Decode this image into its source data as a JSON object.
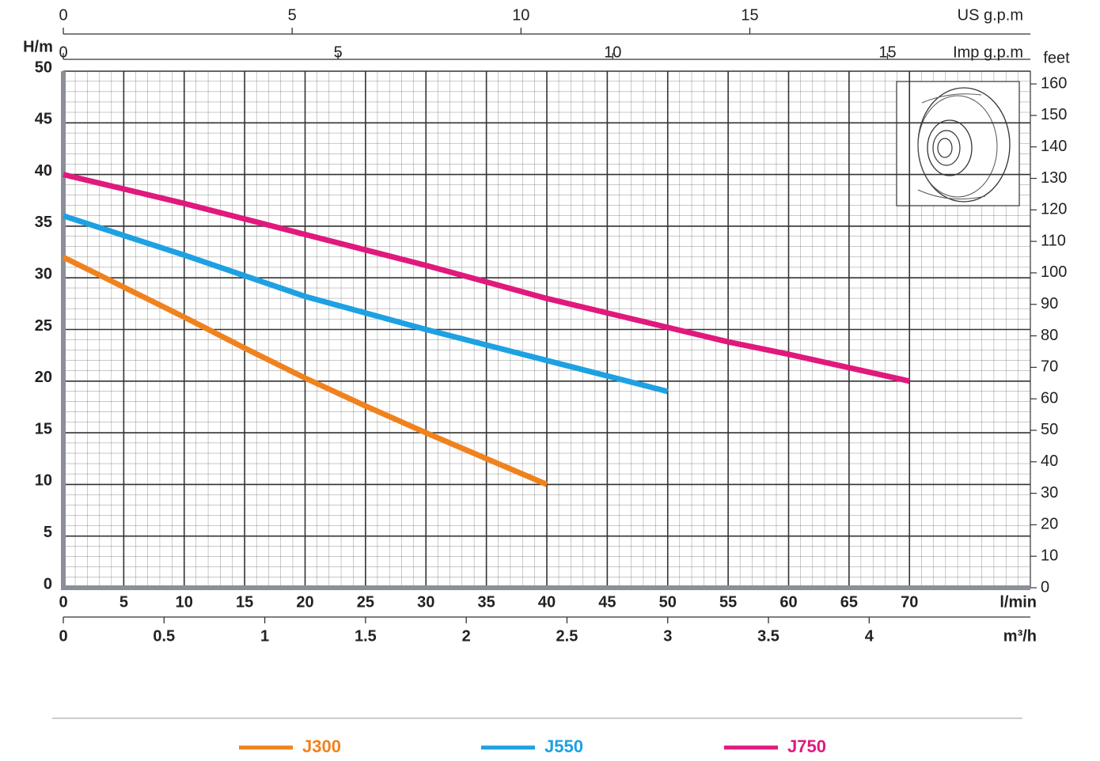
{
  "chart_data": {
    "type": "line",
    "y_label": "H/m",
    "y2_label": "feet",
    "x_label": "l/min",
    "xlim": [
      0,
      80
    ],
    "xticks": [
      0,
      5,
      10,
      15,
      20,
      25,
      30,
      35,
      40,
      45,
      50,
      55,
      60,
      65,
      70
    ],
    "ylim": [
      0,
      50
    ],
    "yticks": [
      0,
      5,
      10,
      15,
      20,
      25,
      30,
      35,
      40,
      45,
      50
    ],
    "y2lim": [
      0,
      164.04
    ],
    "y2ticks": [
      0,
      10,
      20,
      30,
      40,
      50,
      60,
      70,
      80,
      90,
      100,
      110,
      120,
      130,
      140,
      150,
      160
    ],
    "grid": true,
    "extra_x_axes": [
      {
        "label": "US g.p.m",
        "lim": [
          0,
          21.13
        ],
        "ticks": [
          0,
          5,
          10,
          15
        ]
      },
      {
        "label": "Imp g.p.m",
        "lim": [
          0,
          17.6
        ],
        "ticks": [
          0,
          5,
          10,
          15
        ]
      },
      {
        "label": "m³/h",
        "lim": [
          0,
          4.8
        ],
        "ticks": [
          0,
          0.5,
          1,
          1.5,
          2,
          2.5,
          3,
          3.5,
          4
        ]
      }
    ],
    "series": [
      {
        "name": "J300",
        "color": "#f0821e",
        "x": [
          0,
          5,
          10,
          15,
          20,
          25,
          30,
          35,
          40
        ],
        "values": [
          32,
          29.1,
          26.2,
          23.2,
          20.3,
          17.6,
          15,
          12.5,
          10
        ]
      },
      {
        "name": "J550",
        "color": "#1da1e2",
        "x": [
          0,
          5,
          10,
          15,
          20,
          25,
          30,
          35,
          40,
          45,
          50
        ],
        "values": [
          36,
          34.1,
          32.2,
          30.2,
          28.2,
          26.6,
          25,
          23.5,
          22,
          20.5,
          19
        ]
      },
      {
        "name": "J750",
        "color": "#e0197d",
        "x": [
          0,
          5,
          10,
          15,
          20,
          25,
          30,
          35,
          40,
          45,
          50,
          55,
          60,
          65,
          70
        ],
        "values": [
          40,
          38.6,
          37.2,
          35.7,
          34.2,
          32.7,
          31.2,
          29.6,
          28,
          26.6,
          25.2,
          23.8,
          22.6,
          21.3,
          20
        ]
      }
    ]
  }
}
